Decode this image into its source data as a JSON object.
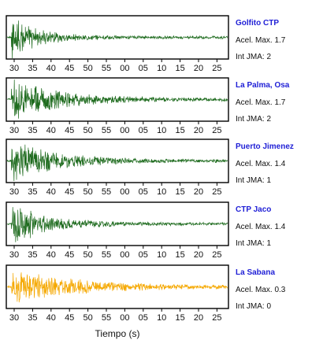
{
  "chart_data": {
    "type": "line",
    "xlabel": "Tiempo (s)",
    "x_tick_labels": [
      "30",
      "35",
      "40",
      "45",
      "50",
      "55",
      "00",
      "05",
      "10",
      "15",
      "20",
      "25"
    ],
    "max_label_text": "Acel. Max.",
    "jma_label_text": "Int JMA:",
    "grid": false,
    "legend": "none",
    "series": [
      {
        "name": "Golfito CTP",
        "max_accel": "1.7",
        "jma": "2",
        "color": "#1e6b1e",
        "onset": 0.02,
        "decay": 0.12,
        "peak": 1.0
      },
      {
        "name": "La Palma, Osa",
        "max_accel": "1.7",
        "jma": "2",
        "color": "#1e6b1e",
        "onset": 0.02,
        "decay": 0.22,
        "peak": 0.95
      },
      {
        "name": "Puerto Jimenez",
        "max_accel": "1.4",
        "jma": "1",
        "color": "#1e6b1e",
        "onset": 0.02,
        "decay": 0.2,
        "peak": 0.95
      },
      {
        "name": "CTP Jaco",
        "max_accel": "1.4",
        "jma": "1",
        "color": "#1e6b1e",
        "onset": 0.02,
        "decay": 0.16,
        "peak": 1.0
      },
      {
        "name": "La Sabana",
        "max_accel": "0.3",
        "jma": "0",
        "color": "#f5a800",
        "onset": 0.02,
        "decay": 0.3,
        "peak": 0.8
      }
    ]
  }
}
